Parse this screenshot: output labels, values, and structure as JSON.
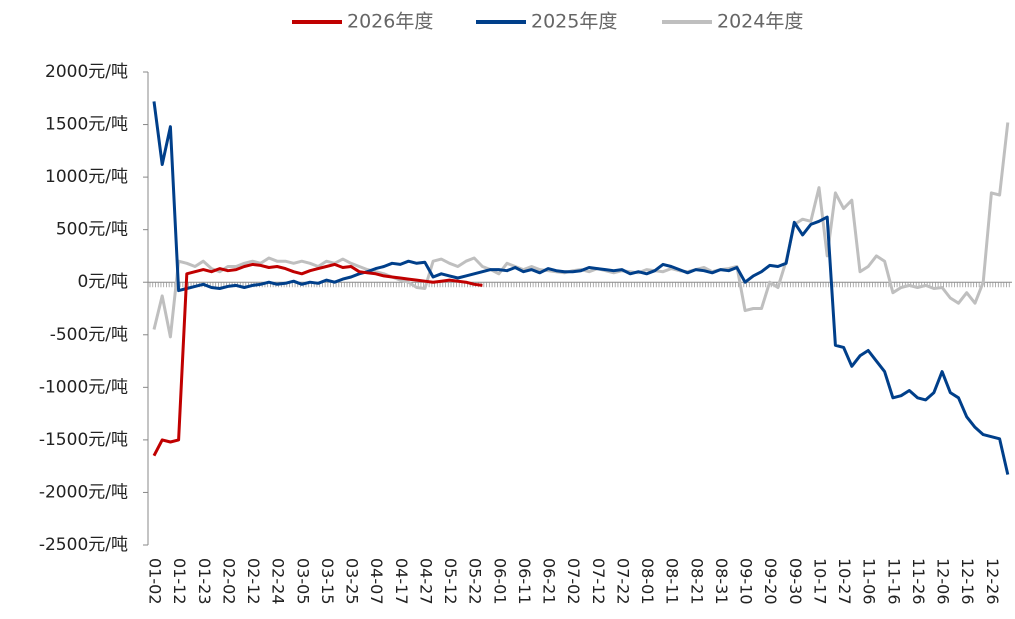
{
  "chart_data": {
    "type": "line",
    "categories": [
      "01-02",
      null,
      null,
      "01-12",
      null,
      null,
      "01-23",
      null,
      null,
      "02-02",
      null,
      null,
      "02-12",
      null,
      null,
      "02-24",
      null,
      null,
      "03-05",
      null,
      null,
      "03-15",
      null,
      null,
      "03-25",
      null,
      null,
      "04-07",
      null,
      null,
      "04-17",
      null,
      null,
      "04-27",
      null,
      null,
      "05-12",
      null,
      null,
      "05-22",
      null,
      null,
      "06-01",
      null,
      null,
      "06-11",
      null,
      null,
      "06-21",
      null,
      null,
      "07-02",
      null,
      null,
      "07-12",
      null,
      null,
      "07-22",
      null,
      null,
      "08-01",
      null,
      null,
      "08-11",
      null,
      null,
      "08-21",
      null,
      null,
      "08-31",
      null,
      null,
      "09-10",
      null,
      null,
      "09-20",
      null,
      null,
      "09-30",
      null,
      null,
      "10-17",
      null,
      null,
      "10-27",
      null,
      null,
      "11-06",
      null,
      null,
      "11-16",
      null,
      null,
      "11-26",
      null,
      null,
      "12-06",
      null,
      null,
      "12-16",
      null,
      null,
      "12-26",
      null,
      null
    ],
    "series": [
      {
        "name": "2026年度",
        "color": "#c00000",
        "values": [
          -1650,
          -1500,
          -1520,
          -1500,
          80,
          100,
          120,
          100,
          130,
          110,
          120,
          150,
          170,
          160,
          140,
          150,
          130,
          100,
          80,
          110,
          130,
          150,
          170,
          140,
          150,
          100,
          90,
          80,
          60,
          50,
          40,
          30,
          20,
          10,
          0,
          10,
          20,
          10,
          0,
          -20,
          -30,
          null,
          null,
          null,
          null,
          null,
          null,
          null,
          null,
          null,
          null,
          null,
          null,
          null,
          null,
          null,
          null,
          null,
          null,
          null,
          null,
          null,
          null,
          null,
          null,
          null,
          null,
          null,
          null,
          null,
          null,
          null,
          null,
          null,
          null,
          null,
          null,
          null,
          null,
          null,
          null,
          null,
          null,
          null,
          null,
          null,
          null,
          null,
          null,
          null,
          null,
          null,
          null,
          null,
          null,
          null,
          null,
          null,
          null,
          null,
          null,
          null,
          null,
          null,
          null
        ]
      },
      {
        "name": "2025年度",
        "color": "#003f8a",
        "values": [
          1720,
          1120,
          1480,
          -80,
          -60,
          -40,
          -20,
          -50,
          -60,
          -40,
          -30,
          -50,
          -30,
          -20,
          0,
          -20,
          -10,
          10,
          -20,
          0,
          -10,
          20,
          0,
          30,
          50,
          80,
          100,
          130,
          150,
          180,
          170,
          200,
          180,
          190,
          50,
          80,
          60,
          40,
          60,
          80,
          100,
          120,
          120,
          110,
          140,
          100,
          120,
          90,
          130,
          110,
          100,
          100,
          110,
          140,
          130,
          120,
          110,
          120,
          80,
          100,
          80,
          110,
          170,
          150,
          120,
          90,
          120,
          110,
          90,
          120,
          110,
          140,
          0,
          60,
          100,
          160,
          150,
          180,
          570,
          450,
          550,
          580,
          620,
          -600,
          -620,
          -800,
          -700,
          -650,
          -750,
          -850,
          -1100,
          -1080,
          -1030,
          -1100,
          -1120,
          -1050,
          -850,
          -1050,
          -1100,
          -1280,
          -1380,
          -1450,
          -1470,
          -1490,
          -1830
        ]
      },
      {
        "name": "2024年度",
        "color": "#bfbfbf",
        "values": [
          -450,
          -130,
          -520,
          200,
          180,
          150,
          200,
          130,
          100,
          150,
          150,
          180,
          200,
          180,
          230,
          200,
          200,
          180,
          200,
          180,
          150,
          200,
          180,
          220,
          180,
          150,
          120,
          100,
          80,
          50,
          20,
          0,
          -50,
          -60,
          200,
          220,
          180,
          150,
          200,
          230,
          150,
          120,
          80,
          180,
          150,
          120,
          150,
          120,
          110,
          100,
          90,
          110,
          120,
          100,
          130,
          110,
          90,
          110,
          100,
          90,
          120,
          110,
          100,
          130,
          110,
          100,
          120,
          140,
          100,
          120,
          130,
          150,
          -270,
          -250,
          -250,
          0,
          -50,
          200,
          550,
          600,
          580,
          900,
          250,
          850,
          700,
          780,
          100,
          150,
          250,
          200,
          -100,
          -50,
          -30,
          -50,
          -30,
          -60,
          -50,
          -150,
          -200,
          -100,
          -200,
          0,
          850,
          830,
          1520
        ]
      }
    ],
    "ylim": [
      -2500,
      2000
    ],
    "yticks": [
      {
        "value": -2500,
        "label": "-2500元/吨"
      },
      {
        "value": -2000,
        "label": "-2000元/吨"
      },
      {
        "value": -1500,
        "label": "-1500元/吨"
      },
      {
        "value": -1000,
        "label": "-1000元/吨"
      },
      {
        "value": -500,
        "label": "-500元/吨"
      },
      {
        "value": 0,
        "label": "0元/吨"
      },
      {
        "value": 500,
        "label": "500元/吨"
      },
      {
        "value": 1000,
        "label": "1000元/吨"
      },
      {
        "value": 1500,
        "label": "1500元/吨"
      },
      {
        "value": 2000,
        "label": "2000元/吨"
      }
    ],
    "legend": "top"
  }
}
